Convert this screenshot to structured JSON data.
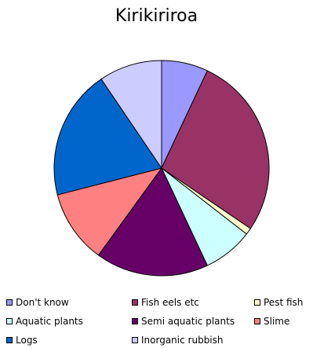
{
  "chart_data": {
    "type": "pie",
    "title": "Kirikiriroa",
    "legend_position": "bottom",
    "slices": [
      {
        "label": "Don't know",
        "value": 7.0,
        "color": "#9999FF"
      },
      {
        "label": "Fish eels etc",
        "value": 27.5,
        "color": "#993366"
      },
      {
        "label": "Pest fish",
        "value": 1.0,
        "color": "#FFFFCC"
      },
      {
        "label": "Aquatic plants",
        "value": 7.5,
        "color": "#CCFFFF"
      },
      {
        "label": "Semi aquatic plants",
        "value": 17.0,
        "color": "#660066"
      },
      {
        "label": "Slime",
        "value": 11.0,
        "color": "#FF8080"
      },
      {
        "label": "Logs",
        "value": 19.5,
        "color": "#0066CC"
      },
      {
        "label": "Inorganic rubbish",
        "value": 9.5,
        "color": "#CCCCFF"
      }
    ]
  }
}
